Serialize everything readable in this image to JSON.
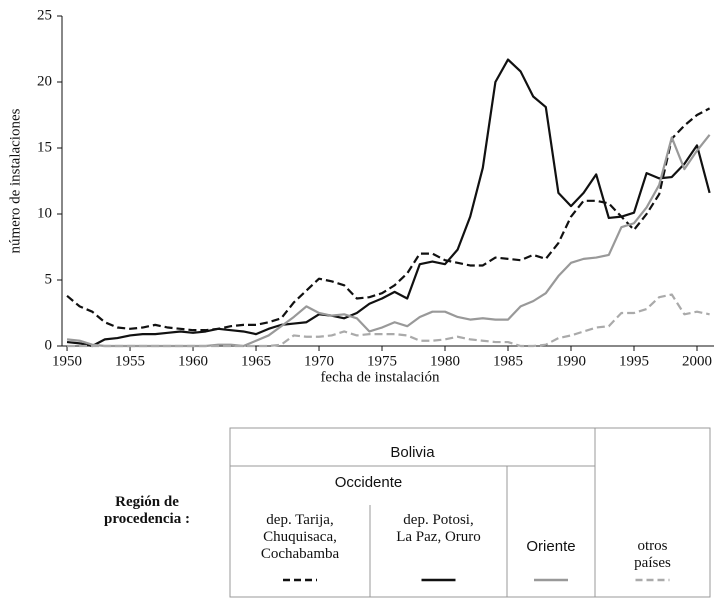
{
  "chart_data": {
    "type": "line",
    "x_label": "fecha de instalación",
    "y_label": "número de instalaciones",
    "x": [
      1950,
      1951,
      1952,
      1953,
      1954,
      1955,
      1956,
      1957,
      1958,
      1959,
      1960,
      1961,
      1962,
      1963,
      1964,
      1965,
      1966,
      1967,
      1968,
      1969,
      1970,
      1971,
      1972,
      1973,
      1974,
      1975,
      1976,
      1977,
      1978,
      1979,
      1980,
      1981,
      1982,
      1983,
      1984,
      1985,
      1986,
      1987,
      1988,
      1989,
      1990,
      1991,
      1992,
      1993,
      1994,
      1995,
      1996,
      1997,
      1998,
      1999,
      2000,
      2001
    ],
    "xlim": [
      1949.6,
      2001.35
    ],
    "xticks": [
      1950,
      1955,
      1960,
      1965,
      1970,
      1975,
      1980,
      1985,
      1990,
      1995,
      2000
    ],
    "ylim": [
      0,
      25
    ],
    "yticks": [
      0,
      5,
      10,
      15,
      20,
      25
    ],
    "legend": {
      "label": "Región de\nprocedencia :",
      "group": "Bolivia",
      "subgroup": "Occidente"
    },
    "series": [
      {
        "name": "dep. Tarija,\nChuquisaca,\nCochabamba",
        "color": "#111111",
        "style": "dashed",
        "values": [
          3.8,
          3.0,
          2.6,
          1.8,
          1.4,
          1.3,
          1.4,
          1.6,
          1.4,
          1.3,
          1.2,
          1.2,
          1.3,
          1.5,
          1.6,
          1.6,
          1.8,
          2.1,
          3.3,
          4.2,
          5.1,
          4.9,
          4.6,
          3.6,
          3.7,
          4.0,
          4.6,
          5.5,
          7.0,
          7.0,
          6.5,
          6.3,
          6.1,
          6.1,
          6.7,
          6.6,
          6.5,
          6.9,
          6.6,
          7.8,
          9.8,
          11.0,
          11.0,
          10.8,
          9.8,
          8.8,
          10.0,
          11.5,
          15.7,
          16.7,
          17.5,
          18.0
        ]
      },
      {
        "name": "dep. Potosi,\nLa Paz, Oruro",
        "color": "#111111",
        "style": "solid",
        "values": [
          0.3,
          0.2,
          0.0,
          0.5,
          0.6,
          0.8,
          0.9,
          0.9,
          1.0,
          1.1,
          1.0,
          1.1,
          1.3,
          1.2,
          1.1,
          0.9,
          1.3,
          1.6,
          1.7,
          1.8,
          2.4,
          2.3,
          2.1,
          2.5,
          3.2,
          3.6,
          4.1,
          3.6,
          6.2,
          6.4,
          6.2,
          7.3,
          9.8,
          13.5,
          20.0,
          21.7,
          20.8,
          18.9,
          18.1,
          11.6,
          10.6,
          11.6,
          13.0,
          9.7,
          9.8,
          10.1,
          13.1,
          12.7,
          12.8,
          13.8,
          15.2,
          11.6
        ]
      },
      {
        "name": "Oriente",
        "color": "#999999",
        "style": "solid",
        "values": [
          0.5,
          0.4,
          0.1,
          0.0,
          0.0,
          0.0,
          0.0,
          0.0,
          0.0,
          0.0,
          0.0,
          0.0,
          0.1,
          0.1,
          0.0,
          0.4,
          0.8,
          1.5,
          2.2,
          3.0,
          2.5,
          2.3,
          2.4,
          2.1,
          1.1,
          1.4,
          1.8,
          1.5,
          2.2,
          2.6,
          2.6,
          2.2,
          2.0,
          2.1,
          2.0,
          2.0,
          3.0,
          3.4,
          4.0,
          5.3,
          6.3,
          6.6,
          6.7,
          6.9,
          9.0,
          9.3,
          10.5,
          12.2,
          15.8,
          13.4,
          14.8,
          16.0
        ]
      },
      {
        "name": "otros\npaíses",
        "color": "#aaaaaa",
        "style": "dashed",
        "values": [
          0.0,
          0.0,
          0.0,
          0.0,
          0.0,
          0.0,
          0.0,
          0.0,
          0.0,
          0.0,
          0.0,
          0.0,
          0.0,
          0.0,
          0.0,
          0.0,
          0.0,
          0.1,
          0.8,
          0.7,
          0.7,
          0.8,
          1.1,
          0.8,
          0.9,
          0.9,
          0.9,
          0.8,
          0.4,
          0.4,
          0.5,
          0.7,
          0.5,
          0.4,
          0.3,
          0.3,
          0.0,
          0.0,
          0.1,
          0.6,
          0.8,
          1.1,
          1.4,
          1.5,
          2.5,
          2.5,
          2.8,
          3.7,
          3.9,
          2.4,
          2.6,
          2.4
        ]
      }
    ]
  }
}
